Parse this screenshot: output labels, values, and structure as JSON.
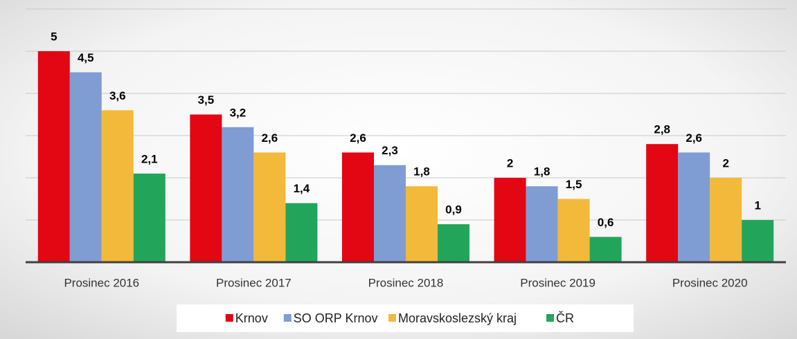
{
  "chart_data": {
    "type": "bar",
    "categories": [
      "Prosinec 2016",
      "Prosinec 2017",
      "Prosinec 2018",
      "Prosinec 2019",
      "Prosinec 2020"
    ],
    "series": [
      {
        "name": "Krnov",
        "color": "#e30613",
        "values": [
          5,
          3.5,
          2.6,
          2,
          2.8
        ],
        "value_labels": [
          "5",
          "3,5",
          "2,6",
          "2",
          "2,8"
        ]
      },
      {
        "name": "SO ORP Krnov",
        "color": "#7f9dd3",
        "values": [
          4.5,
          3.2,
          2.3,
          1.8,
          2.6
        ],
        "value_labels": [
          "4,5",
          "3,2",
          "2,3",
          "1,8",
          "2,6"
        ]
      },
      {
        "name": "Moravskoslezský kraj",
        "color": "#f2b93b",
        "values": [
          3.6,
          2.6,
          1.8,
          1.5,
          2
        ],
        "value_labels": [
          "3,6",
          "2,6",
          "1,8",
          "1,5",
          "2"
        ]
      },
      {
        "name": "ČR",
        "color": "#22a55a",
        "values": [
          2.1,
          1.4,
          0.9,
          0.6,
          1
        ],
        "value_labels": [
          "2,1",
          "1,4",
          "0,9",
          "0,6",
          "1"
        ]
      }
    ],
    "ylim": [
      0,
      6
    ],
    "yticks": [
      0,
      1,
      2,
      3,
      4,
      5,
      6
    ],
    "grid": true,
    "legend": "bottom"
  }
}
